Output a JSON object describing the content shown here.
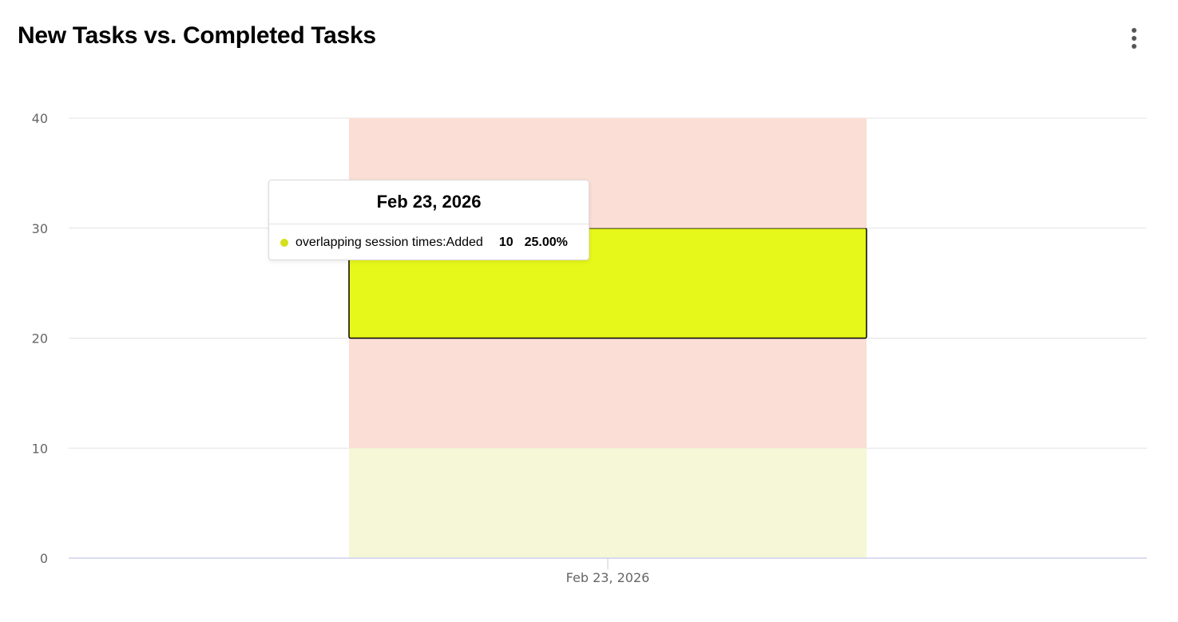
{
  "header": {
    "title": "New Tasks vs. Completed Tasks",
    "menu_icon": "more-vertical-icon"
  },
  "chart_data": {
    "type": "bar",
    "stacked": true,
    "title": "New Tasks vs. Completed Tasks",
    "xlabel": "",
    "ylabel": "",
    "categories": [
      "Feb 23, 2026"
    ],
    "ylim": [
      0,
      40
    ],
    "yticks": [
      0,
      10,
      20,
      30,
      40
    ],
    "grid": true,
    "series": [
      {
        "values": [
          10
        ],
        "color": "#f5f7d6"
      },
      {
        "values": [
          10
        ],
        "color": "#fbded5"
      },
      {
        "name": "overlapping session times:Added",
        "values": [
          10
        ],
        "color": "#e6f71a"
      },
      {
        "values": [
          10
        ],
        "color": "#fbded5"
      }
    ],
    "highlighted_series_index": 2
  },
  "tooltip": {
    "title": "Feb 23, 2026",
    "series_name": "overlapping session times:Added",
    "value": "10",
    "percent": "25.00%",
    "marker_color": "#d4e01a"
  }
}
